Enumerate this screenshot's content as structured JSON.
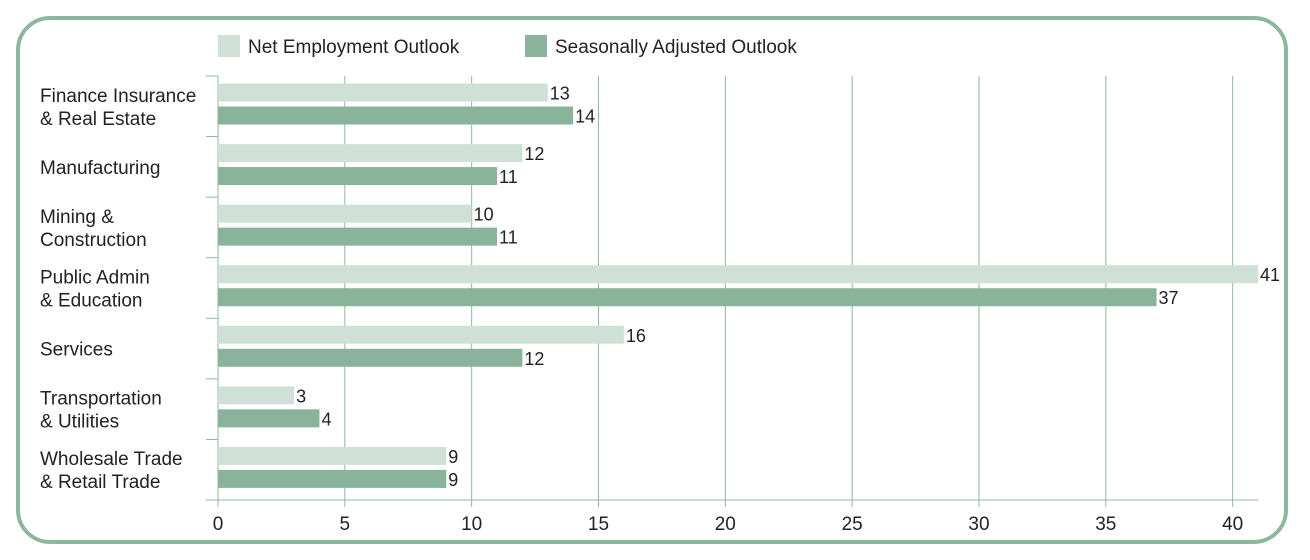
{
  "chart_data": {
    "type": "bar",
    "orientation": "horizontal",
    "categories": [
      [
        "Finance Insurance",
        "& Real Estate"
      ],
      [
        "Manufacturing"
      ],
      [
        "Mining &",
        "Construction"
      ],
      [
        "Public Admin",
        "& Education"
      ],
      [
        "Services"
      ],
      [
        "Transportation",
        "& Utilities"
      ],
      [
        "Wholesale Trade",
        "& Retail Trade"
      ]
    ],
    "series": [
      {
        "name": "Net Employment Outlook",
        "values": [
          13,
          12,
          10,
          41,
          16,
          3,
          9
        ],
        "color": "#cfe1d6"
      },
      {
        "name": "Seasonally Adjusted Outlook",
        "values": [
          14,
          11,
          11,
          37,
          12,
          4,
          9
        ],
        "color": "#89b39a"
      }
    ],
    "xlim": [
      0,
      41
    ],
    "xticks": [
      0,
      5,
      10,
      15,
      20,
      25,
      30,
      35,
      40
    ],
    "grid": "vertical",
    "legend_position": "top",
    "data_labels": true,
    "axis_color": "#8cb8a0",
    "frame_color": "#8cb8a0"
  }
}
